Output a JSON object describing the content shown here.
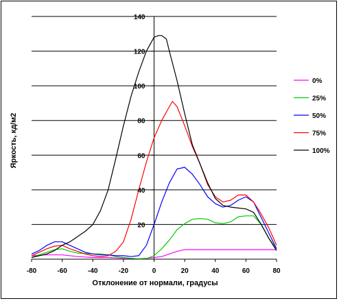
{
  "chart_data": {
    "type": "line",
    "xlabel": "Отклонение от нормали, градусы",
    "ylabel": "Яркость, кд/м2",
    "xlim": [
      -80,
      80
    ],
    "ylim": [
      0,
      140
    ],
    "xticks": [
      -80,
      -60,
      -40,
      -20,
      0,
      20,
      40,
      60,
      80
    ],
    "yticks": [
      20,
      40,
      60,
      80,
      100,
      120,
      140
    ],
    "grid": "horizontal",
    "legend_position": "right",
    "series": [
      {
        "name": "0%",
        "color": "#ff00ff",
        "points": [
          [
            -80,
            2
          ],
          [
            -70,
            2.5
          ],
          [
            -65,
            2.5
          ],
          [
            -60,
            2.5
          ],
          [
            -50,
            1.5
          ],
          [
            -40,
            1
          ],
          [
            -30,
            1
          ],
          [
            -20,
            0.5
          ],
          [
            -10,
            0.3
          ],
          [
            -5,
            0.5
          ],
          [
            0,
            1
          ],
          [
            5,
            1.5
          ],
          [
            10,
            3
          ],
          [
            15,
            4.5
          ],
          [
            20,
            5.5
          ],
          [
            30,
            5.5
          ],
          [
            40,
            5.5
          ],
          [
            50,
            5.5
          ],
          [
            60,
            5.5
          ],
          [
            70,
            5.5
          ],
          [
            80,
            5.5
          ]
        ]
      },
      {
        "name": "25%",
        "color": "#00cc00",
        "points": [
          [
            -80,
            1
          ],
          [
            -70,
            4
          ],
          [
            -65,
            5.5
          ],
          [
            -60,
            6
          ],
          [
            -55,
            4.5
          ],
          [
            -50,
            3.5
          ],
          [
            -40,
            3
          ],
          [
            -35,
            3
          ],
          [
            -30,
            2.5
          ],
          [
            -25,
            1.5
          ],
          [
            -20,
            1
          ],
          [
            -15,
            0.5
          ],
          [
            -10,
            0.2
          ],
          [
            -5,
            0.3
          ],
          [
            0,
            2
          ],
          [
            5,
            6
          ],
          [
            10,
            11
          ],
          [
            15,
            17
          ],
          [
            20,
            20.5
          ],
          [
            25,
            23
          ],
          [
            30,
            23.5
          ],
          [
            35,
            23
          ],
          [
            40,
            21
          ],
          [
            45,
            20.5
          ],
          [
            50,
            21.5
          ],
          [
            55,
            24.5
          ],
          [
            60,
            25
          ],
          [
            65,
            25
          ],
          [
            70,
            20
          ],
          [
            75,
            12
          ],
          [
            80,
            6
          ]
        ]
      },
      {
        "name": "50%",
        "color": "#0000ff",
        "points": [
          [
            -80,
            3
          ],
          [
            -75,
            5
          ],
          [
            -70,
            8
          ],
          [
            -65,
            10
          ],
          [
            -60,
            10
          ],
          [
            -55,
            8
          ],
          [
            -50,
            6
          ],
          [
            -45,
            4
          ],
          [
            -40,
            3
          ],
          [
            -35,
            2.5
          ],
          [
            -30,
            2.5
          ],
          [
            -25,
            2
          ],
          [
            -20,
            2
          ],
          [
            -15,
            1.5
          ],
          [
            -10,
            2
          ],
          [
            -5,
            8
          ],
          [
            0,
            20
          ],
          [
            5,
            33
          ],
          [
            10,
            44
          ],
          [
            15,
            52
          ],
          [
            20,
            53
          ],
          [
            25,
            49
          ],
          [
            30,
            43
          ],
          [
            35,
            36
          ],
          [
            40,
            32
          ],
          [
            45,
            30
          ],
          [
            50,
            31
          ],
          [
            55,
            34
          ],
          [
            60,
            36
          ],
          [
            65,
            33
          ],
          [
            70,
            24
          ],
          [
            75,
            15
          ],
          [
            80,
            6
          ]
        ]
      },
      {
        "name": "75%",
        "color": "#ff0000",
        "points": [
          [
            -80,
            2
          ],
          [
            -75,
            4
          ],
          [
            -70,
            6
          ],
          [
            -65,
            7.5
          ],
          [
            -60,
            8
          ],
          [
            -55,
            6
          ],
          [
            -50,
            4.5
          ],
          [
            -45,
            3
          ],
          [
            -40,
            2
          ],
          [
            -35,
            1.5
          ],
          [
            -30,
            2
          ],
          [
            -25,
            4.5
          ],
          [
            -20,
            10
          ],
          [
            -15,
            23
          ],
          [
            -10,
            40
          ],
          [
            -5,
            56
          ],
          [
            0,
            70
          ],
          [
            5,
            80
          ],
          [
            10,
            88
          ],
          [
            12,
            91
          ],
          [
            15,
            88
          ],
          [
            20,
            77
          ],
          [
            25,
            65
          ],
          [
            30,
            55
          ],
          [
            35,
            43
          ],
          [
            40,
            36
          ],
          [
            45,
            33
          ],
          [
            50,
            34
          ],
          [
            55,
            37
          ],
          [
            60,
            37
          ],
          [
            65,
            33
          ],
          [
            70,
            26
          ],
          [
            75,
            18
          ],
          [
            80,
            8
          ]
        ]
      },
      {
        "name": "100%",
        "color": "#000000",
        "points": [
          [
            -80,
            1
          ],
          [
            -70,
            3
          ],
          [
            -65,
            5
          ],
          [
            -60,
            8
          ],
          [
            -55,
            10
          ],
          [
            -50,
            13
          ],
          [
            -45,
            16
          ],
          [
            -40,
            20
          ],
          [
            -35,
            28
          ],
          [
            -30,
            40
          ],
          [
            -25,
            58
          ],
          [
            -20,
            77
          ],
          [
            -15,
            94
          ],
          [
            -10,
            108
          ],
          [
            -5,
            120
          ],
          [
            0,
            128
          ],
          [
            3,
            129
          ],
          [
            5,
            129
          ],
          [
            8,
            127
          ],
          [
            10,
            120
          ],
          [
            15,
            103
          ],
          [
            20,
            84
          ],
          [
            25,
            66
          ],
          [
            30,
            55
          ],
          [
            35,
            44
          ],
          [
            40,
            35
          ],
          [
            45,
            31
          ],
          [
            50,
            30
          ],
          [
            55,
            29.5
          ],
          [
            60,
            29
          ],
          [
            65,
            27
          ],
          [
            70,
            20
          ],
          [
            75,
            12
          ],
          [
            80,
            5
          ]
        ]
      }
    ]
  }
}
